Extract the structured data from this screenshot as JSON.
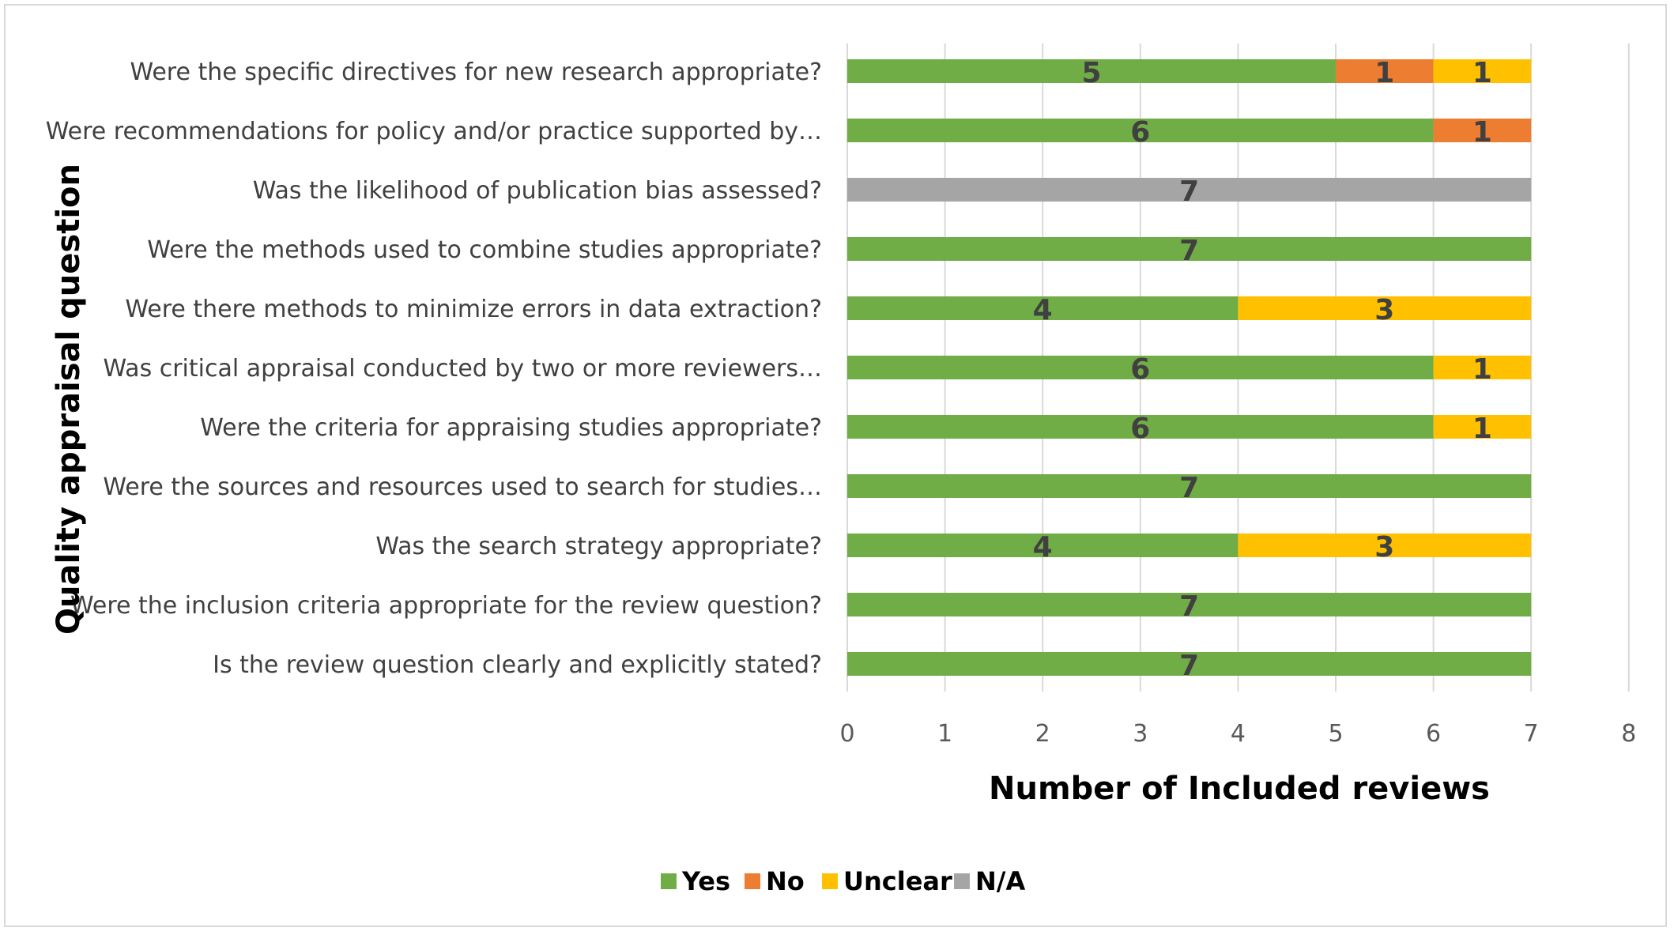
{
  "chart_data": {
    "type": "bar",
    "orientation": "horizontal",
    "stacked": true,
    "xlabel": "Number of Included reviews",
    "ylabel": "Quality appraisal question",
    "xlim": [
      0,
      8
    ],
    "xticks": [
      0,
      1,
      2,
      3,
      4,
      5,
      6,
      7,
      8
    ],
    "grid": true,
    "legend_position": "bottom",
    "categories": [
      "Were the specific directives for new research appropriate?",
      "Were recommendations for policy and/or practice supported by…",
      "Was the likelihood of publication bias assessed?",
      "Were the methods used to combine studies appropriate?",
      "Were there methods to minimize errors in data extraction?",
      "Was critical appraisal conducted by two or more reviewers…",
      "Were the criteria for appraising studies appropriate?",
      "Were the sources and resources used to search for studies…",
      "Was the search strategy appropriate?",
      "Were the inclusion criteria appropriate for the review question?",
      "Is the review question clearly and explicitly stated?"
    ],
    "series": [
      {
        "name": "Yes",
        "color": "#70ad47",
        "values": [
          5,
          6,
          0,
          7,
          4,
          6,
          6,
          7,
          4,
          7,
          7
        ]
      },
      {
        "name": "No",
        "color": "#ed7d31",
        "values": [
          1,
          1,
          0,
          0,
          0,
          0,
          0,
          0,
          0,
          0,
          0
        ]
      },
      {
        "name": "Unclear",
        "color": "#ffc000",
        "values": [
          1,
          0,
          0,
          0,
          3,
          1,
          1,
          0,
          3,
          0,
          0
        ]
      },
      {
        "name": "N/A",
        "color": "#a5a5a5",
        "values": [
          0,
          0,
          7,
          0,
          0,
          0,
          0,
          0,
          0,
          0,
          0
        ]
      }
    ]
  }
}
